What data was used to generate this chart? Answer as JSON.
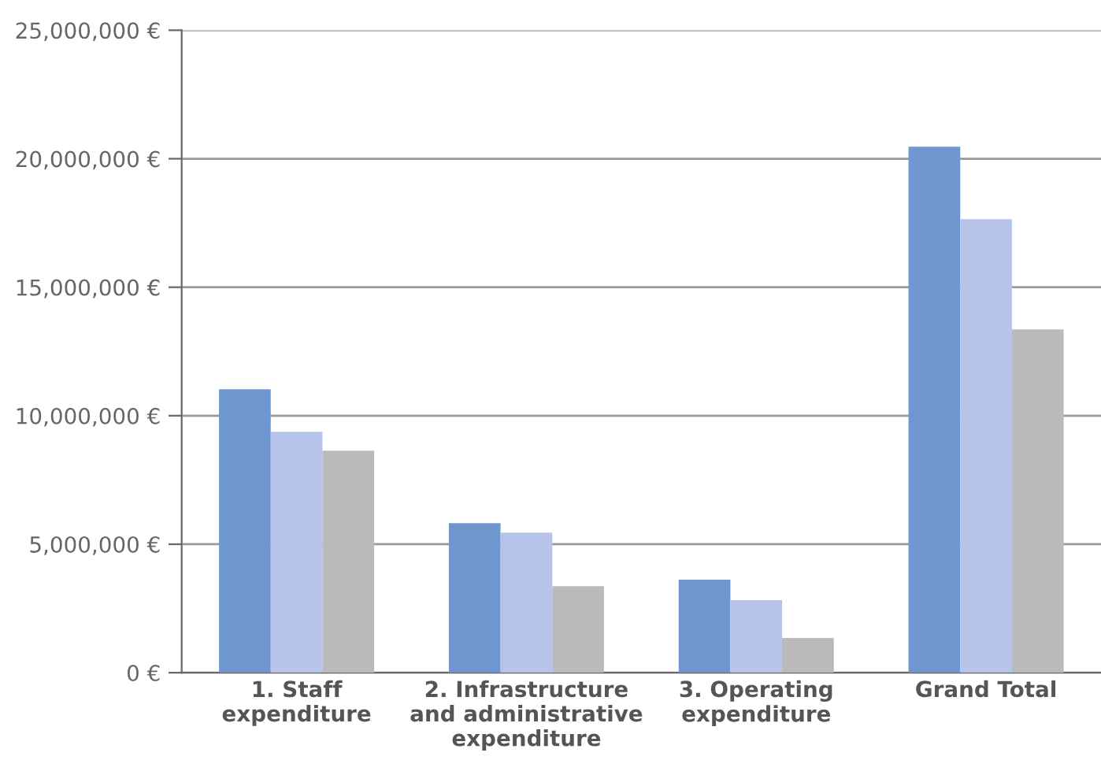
{
  "chart_data": {
    "type": "bar",
    "categories": [
      "1. Staff\nexpenditure",
      "2. Infrastructure\nand administrative\nexpenditure",
      "3. Operating\nexpenditure",
      "Grand Total"
    ],
    "series": [
      {
        "color": "#7096cf",
        "values": [
          11030000,
          5820000,
          3620000,
          20470000
        ]
      },
      {
        "color": "#b7c4ea",
        "values": [
          9370000,
          5450000,
          2820000,
          17650000
        ]
      },
      {
        "color": "#b9bab9",
        "values": [
          8640000,
          3370000,
          1350000,
          13360000
        ]
      }
    ],
    "ylim": [
      0,
      25000000
    ],
    "yticks": [
      {
        "value": 0,
        "label": "0 €"
      },
      {
        "value": 5000000,
        "label": "5,000,000 €"
      },
      {
        "value": 10000000,
        "label": "10,000,000 €"
      },
      {
        "value": 15000000,
        "label": "15,000,000 €"
      },
      {
        "value": 20000000,
        "label": "20,000,000 €"
      },
      {
        "value": 25000000,
        "label": "25,000,000 €"
      }
    ],
    "grid": "y",
    "legend": false
  }
}
